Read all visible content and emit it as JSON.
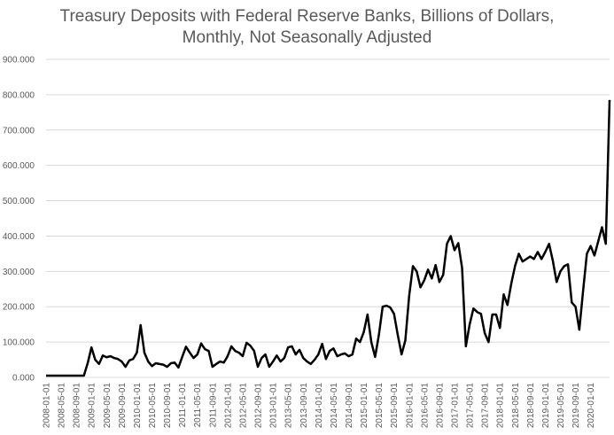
{
  "chart_data": {
    "type": "line",
    "title_line1": "Treasury Deposits with Federal Reserve Banks, Billions of Dollars,",
    "title_line2": "Monthly, Not Seasonally Adjusted",
    "xlabel": "",
    "ylabel": "",
    "ylim": [
      0,
      900
    ],
    "yticks": [
      {
        "value": 0,
        "label": "0.000"
      },
      {
        "value": 100,
        "label": "100.000"
      },
      {
        "value": 200,
        "label": "200.000"
      },
      {
        "value": 300,
        "label": "300.000"
      },
      {
        "value": 400,
        "label": "400.000"
      },
      {
        "value": 500,
        "label": "500.000"
      },
      {
        "value": 600,
        "label": "600.000"
      },
      {
        "value": 700,
        "label": "700.000"
      },
      {
        "value": 800,
        "label": "800.000"
      },
      {
        "value": 900,
        "label": "900.000"
      }
    ],
    "grid": true,
    "legend": "none",
    "series_color": "#000000",
    "start": "2008-01",
    "xticks": [
      "2008-01-01",
      "2008-05-01",
      "2008-09-01",
      "2009-01-01",
      "2009-05-01",
      "2009-09-01",
      "2010-01-01",
      "2010-05-01",
      "2010-09-01",
      "2011-01-01",
      "2011-05-01",
      "2011-09-01",
      "2012-01-01",
      "2012-05-01",
      "2012-09-01",
      "2013-01-01",
      "2013-05-01",
      "2013-09-01",
      "2014-01-01",
      "2014-05-01",
      "2014-09-01",
      "2015-01-01",
      "2015-05-01",
      "2015-09-01",
      "2016-01-01",
      "2016-05-01",
      "2016-09-01",
      "2017-01-01",
      "2017-05-01",
      "2017-09-01",
      "2018-01-01",
      "2018-05-01",
      "2018-09-01",
      "2019-01-01",
      "2019-05-01",
      "2019-09-01",
      "2020-01-01"
    ],
    "values": [
      5,
      5,
      5,
      5,
      5,
      5,
      5,
      5,
      5,
      5,
      5,
      40,
      85,
      50,
      38,
      62,
      57,
      60,
      55,
      52,
      45,
      30,
      48,
      52,
      70,
      148,
      70,
      45,
      32,
      40,
      38,
      36,
      30,
      40,
      42,
      28,
      58,
      87,
      70,
      55,
      65,
      96,
      80,
      75,
      30,
      38,
      45,
      42,
      60,
      88,
      75,
      70,
      60,
      98,
      90,
      75,
      30,
      55,
      65,
      30,
      45,
      62,
      45,
      55,
      85,
      88,
      65,
      78,
      55,
      45,
      38,
      50,
      65,
      95,
      52,
      75,
      82,
      60,
      65,
      68,
      60,
      65,
      110,
      100,
      128,
      178,
      100,
      58,
      120,
      200,
      203,
      198,
      180,
      120,
      65,
      105,
      230,
      315,
      300,
      255,
      275,
      305,
      280,
      318,
      270,
      290,
      378,
      400,
      360,
      380,
      310,
      88,
      150,
      195,
      185,
      180,
      125,
      100,
      178,
      178,
      140,
      235,
      205,
      265,
      315,
      350,
      328,
      335,
      342,
      335,
      355,
      335,
      355,
      378,
      330,
      270,
      300,
      315,
      320,
      212,
      200,
      135,
      245,
      350,
      372,
      345,
      385,
      425,
      378,
      785
    ]
  }
}
